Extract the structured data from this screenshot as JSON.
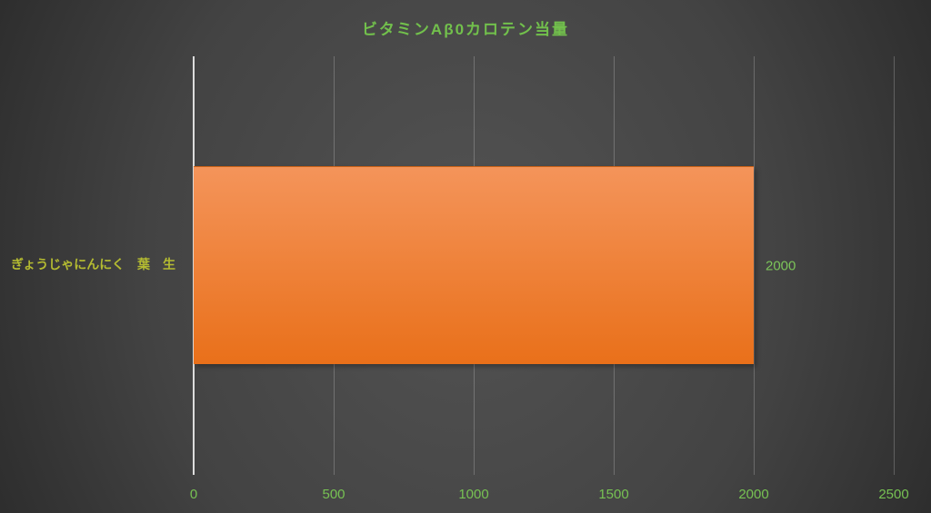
{
  "chart_data": {
    "type": "bar",
    "orientation": "horizontal",
    "title": "ビタミンAβ0カロテン当量",
    "categories": [
      "ぎょうじゃにんにく　葉　生"
    ],
    "values": [
      2000
    ],
    "data_labels": [
      "2000"
    ],
    "x_ticks": [
      0,
      500,
      1000,
      1500,
      2000,
      2500
    ],
    "xlim": [
      0,
      2500
    ],
    "xlabel": "",
    "ylabel": "",
    "grid": true,
    "legend": "none",
    "colors": {
      "background_center": "#535353",
      "background_edge": "#272727",
      "title_text": "#72c04c",
      "tick_text": "#77c253",
      "data_label_text": "#7cc45a",
      "category_text": "#b4bb31",
      "bar_gradient_top": "#f4945a",
      "bar_gradient_bottom": "#e9701a",
      "axis_line": "#dcdcdc",
      "gridline": "rgba(255,255,255,0.22)"
    }
  }
}
